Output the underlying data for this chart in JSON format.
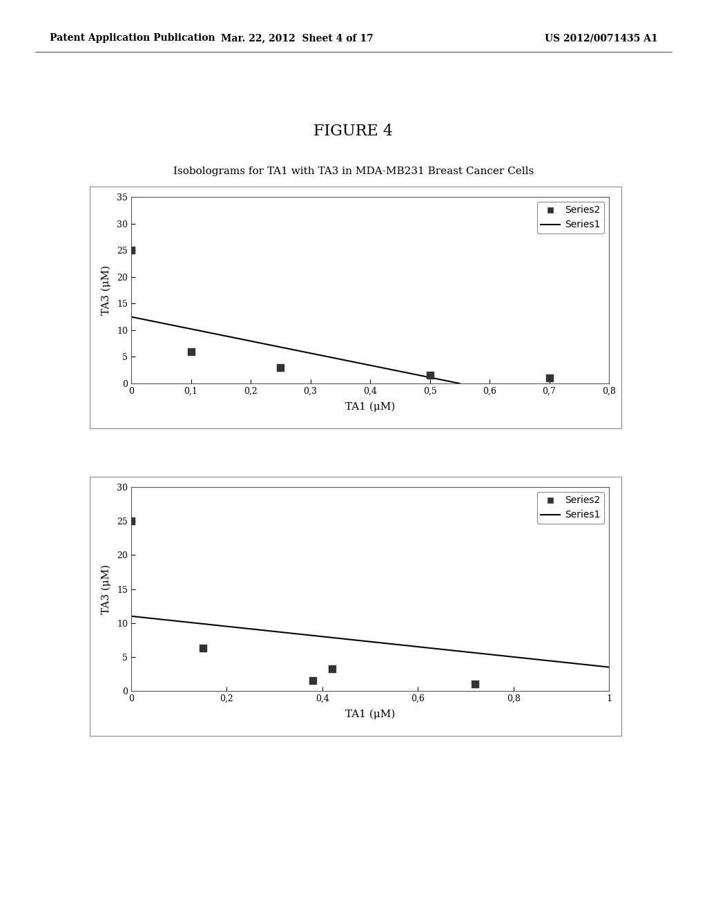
{
  "page_header_left": "Patent Application Publication",
  "page_header_mid": "Mar. 22, 2012  Sheet 4 of 17",
  "page_header_right": "US 2012/0071435 A1",
  "figure_title": "FIGURE 4",
  "subtitle": "Isobolograms for TA1 with TA3 in MDA-MB231 Breast Cancer Cells",
  "chart1": {
    "xlabel": "TA1 (μM)",
    "ylabel": "TA3 (μM)",
    "xlim": [
      0,
      0.8
    ],
    "ylim": [
      0,
      35
    ],
    "xticks": [
      0,
      0.1,
      0.2,
      0.3,
      0.4,
      0.5,
      0.6,
      0.7,
      0.8
    ],
    "yticks": [
      0,
      5,
      10,
      15,
      20,
      25,
      30,
      35
    ],
    "xtick_labels": [
      "0",
      "0,1",
      "0,2",
      "0,3",
      "0,4",
      "0,5",
      "0,6",
      "0,7",
      "0,8"
    ],
    "ytick_labels": [
      "0",
      "5",
      "10",
      "15",
      "20",
      "25",
      "30",
      "35"
    ],
    "series2_x": [
      0,
      0.1,
      0.25,
      0.5,
      0.7
    ],
    "series2_y": [
      25,
      6,
      3,
      1.5,
      1
    ],
    "series1_x": [
      0,
      0.55
    ],
    "series1_y": [
      12.5,
      0
    ],
    "legend_series2": "Series2",
    "legend_series1": "Series1"
  },
  "chart2": {
    "xlabel": "TA1 (μM)",
    "ylabel": "TA3 (μM)",
    "xlim": [
      0,
      1
    ],
    "ylim": [
      0,
      30
    ],
    "xticks": [
      0,
      0.2,
      0.4,
      0.6,
      0.8,
      1
    ],
    "yticks": [
      0,
      5,
      10,
      15,
      20,
      25,
      30
    ],
    "xtick_labels": [
      "0",
      "0,2",
      "0,4",
      "0,6",
      "0,8",
      "1"
    ],
    "ytick_labels": [
      "0",
      "5",
      "10",
      "15",
      "20",
      "25",
      "30"
    ],
    "series2_x": [
      0,
      0.15,
      0.38,
      0.42,
      0.72
    ],
    "series2_y": [
      25,
      6.3,
      1.5,
      3.3,
      1
    ],
    "series1_x": [
      0,
      1
    ],
    "series1_y": [
      11,
      3.5
    ],
    "legend_series2": "Series2",
    "legend_series1": "Series1"
  },
  "bg_color": "#ffffff",
  "plot_bg_color": "#ffffff",
  "marker_color": "#333333",
  "line_color": "#000000",
  "border_color": "#888888"
}
